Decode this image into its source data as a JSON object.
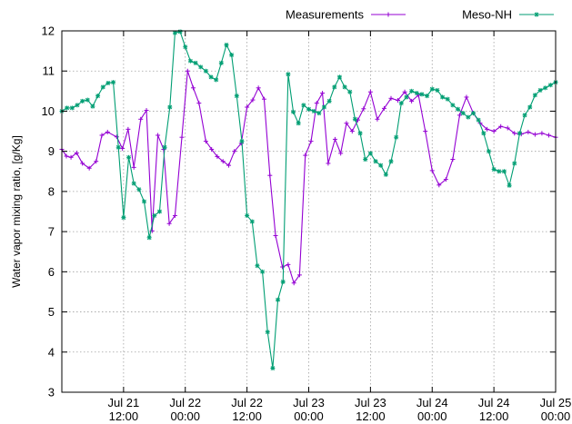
{
  "chart_data": {
    "type": "line",
    "ylabel": "Water vapor mixing ratio, [g/Kg]",
    "xlabel": "",
    "ylim": [
      3,
      12
    ],
    "yticks": [
      3,
      4,
      5,
      6,
      7,
      8,
      9,
      10,
      11,
      12
    ],
    "xlim": [
      "2007-07-21 00:00",
      "2007-07-25 00:00"
    ],
    "xticks": [
      {
        "x": "2007-07-21 12:00",
        "label": [
          "Jul 21",
          "12:00"
        ]
      },
      {
        "x": "2007-07-22 00:00",
        "label": [
          "Jul 22",
          "00:00"
        ]
      },
      {
        "x": "2007-07-22 12:00",
        "label": [
          "Jul 22",
          "12:00"
        ]
      },
      {
        "x": "2007-07-23 00:00",
        "label": [
          "Jul 23",
          "00:00"
        ]
      },
      {
        "x": "2007-07-23 12:00",
        "label": [
          "Jul 23",
          "12:00"
        ]
      },
      {
        "x": "2007-07-24 00:00",
        "label": [
          "Jul 24",
          "00:00"
        ]
      },
      {
        "x": "2007-07-24 12:00",
        "label": [
          "Jul 24",
          "12:00"
        ]
      },
      {
        "x": "2007-07-25 00:00",
        "label": [
          "Jul 25",
          "00:00"
        ]
      }
    ],
    "grid": true,
    "legend_position": "top-right",
    "series": [
      {
        "name": "Measurements",
        "color": "#9400d3",
        "marker": "plus",
        "x": [
          "2007-07-21 00:00",
          "2007-07-21 00:53",
          "2007-07-21 01:47",
          "2007-07-21 02:53",
          "2007-07-21 04:00",
          "2007-07-21 05:20",
          "2007-07-21 06:40",
          "2007-07-21 07:47",
          "2007-07-21 08:53",
          "2007-07-21 10:40",
          "2007-07-21 11:47",
          "2007-07-21 12:53",
          "2007-07-21 14:00",
          "2007-07-21 15:20",
          "2007-07-21 16:27",
          "2007-07-21 17:33",
          "2007-07-21 18:40",
          "2007-07-21 19:47",
          "2007-07-21 20:53",
          "2007-07-21 22:00",
          "2007-07-21 23:20",
          "2007-07-22 00:27",
          "2007-07-22 01:33",
          "2007-07-22 02:40",
          "2007-07-22 04:00",
          "2007-07-22 05:07",
          "2007-07-22 06:13",
          "2007-07-22 07:20",
          "2007-07-22 08:27",
          "2007-07-22 09:33",
          "2007-07-22 10:53",
          "2007-07-22 12:00",
          "2007-07-22 13:07",
          "2007-07-22 14:13",
          "2007-07-22 15:20",
          "2007-07-22 16:27",
          "2007-07-22 17:33",
          "2007-07-22 18:53",
          "2007-07-22 20:00",
          "2007-07-22 21:07",
          "2007-07-22 22:13",
          "2007-07-22 23:20",
          "2007-07-23 00:27",
          "2007-07-23 01:33",
          "2007-07-23 02:40",
          "2007-07-23 03:47",
          "2007-07-23 05:07",
          "2007-07-23 06:13",
          "2007-07-23 07:20",
          "2007-07-23 08:27",
          "2007-07-23 09:33",
          "2007-07-23 10:40",
          "2007-07-23 12:00",
          "2007-07-23 13:20",
          "2007-07-23 14:40",
          "2007-07-23 16:00",
          "2007-07-23 17:20",
          "2007-07-23 18:40",
          "2007-07-23 20:00",
          "2007-07-23 21:20",
          "2007-07-23 22:40",
          "2007-07-24 00:00",
          "2007-07-24 01:20",
          "2007-07-24 02:40",
          "2007-07-24 04:00",
          "2007-07-24 05:20",
          "2007-07-24 06:40",
          "2007-07-24 08:00",
          "2007-07-24 09:20",
          "2007-07-24 10:40",
          "2007-07-24 12:00",
          "2007-07-24 13:20",
          "2007-07-24 14:40",
          "2007-07-24 16:00",
          "2007-07-24 17:20",
          "2007-07-24 18:40",
          "2007-07-24 20:00",
          "2007-07-24 21:20",
          "2007-07-24 22:40",
          "2007-07-25 00:00"
        ],
        "values": [
          9.05,
          8.88,
          8.85,
          8.96,
          8.7,
          8.58,
          8.75,
          9.4,
          9.48,
          9.36,
          9.07,
          9.55,
          8.6,
          9.8,
          10.02,
          7.02,
          9.4,
          9.05,
          7.2,
          7.4,
          9.35,
          11.0,
          10.58,
          10.2,
          9.25,
          9.05,
          8.87,
          8.75,
          8.65,
          9.0,
          9.2,
          10.1,
          10.28,
          10.58,
          10.3,
          8.4,
          6.9,
          6.12,
          6.18,
          5.72,
          5.92,
          8.9,
          9.25,
          10.2,
          10.45,
          8.7,
          9.3,
          8.95,
          9.7,
          9.5,
          9.78,
          10.06,
          10.48,
          9.8,
          10.07,
          10.32,
          10.27,
          10.48,
          10.25,
          10.4,
          9.5,
          8.52,
          8.16,
          8.3,
          8.8,
          9.9,
          10.35,
          9.95,
          9.7,
          9.55,
          9.5,
          9.62,
          9.58,
          9.45,
          9.43,
          9.48,
          9.42,
          9.45,
          9.4,
          9.35
        ]
      },
      {
        "name": "Meso-NH",
        "color": "#009e73",
        "marker": "star",
        "x": [
          "2007-07-21 00:00",
          "2007-07-21 01:00",
          "2007-07-21 02:00",
          "2007-07-21 03:00",
          "2007-07-21 04:00",
          "2007-07-21 05:00",
          "2007-07-21 06:00",
          "2007-07-21 07:00",
          "2007-07-21 08:00",
          "2007-07-21 09:00",
          "2007-07-21 10:00",
          "2007-07-21 11:00",
          "2007-07-21 12:00",
          "2007-07-21 13:00",
          "2007-07-21 14:00",
          "2007-07-21 15:00",
          "2007-07-21 16:00",
          "2007-07-21 17:00",
          "2007-07-21 18:00",
          "2007-07-21 19:00",
          "2007-07-21 20:00",
          "2007-07-21 21:00",
          "2007-07-21 22:00",
          "2007-07-21 23:00",
          "2007-07-22 00:00",
          "2007-07-22 01:00",
          "2007-07-22 02:00",
          "2007-07-22 03:00",
          "2007-07-22 04:00",
          "2007-07-22 05:00",
          "2007-07-22 06:00",
          "2007-07-22 07:00",
          "2007-07-22 08:00",
          "2007-07-22 09:00",
          "2007-07-22 10:00",
          "2007-07-22 11:00",
          "2007-07-22 12:00",
          "2007-07-22 13:00",
          "2007-07-22 14:00",
          "2007-07-22 15:00",
          "2007-07-22 16:00",
          "2007-07-22 17:00",
          "2007-07-22 18:00",
          "2007-07-22 19:00",
          "2007-07-22 20:00",
          "2007-07-22 21:00",
          "2007-07-22 22:00",
          "2007-07-22 23:00",
          "2007-07-23 00:00",
          "2007-07-23 01:00",
          "2007-07-23 02:00",
          "2007-07-23 03:00",
          "2007-07-23 04:00",
          "2007-07-23 05:00",
          "2007-07-23 06:00",
          "2007-07-23 07:00",
          "2007-07-23 08:00",
          "2007-07-23 09:00",
          "2007-07-23 10:00",
          "2007-07-23 11:00",
          "2007-07-23 12:00",
          "2007-07-23 13:00",
          "2007-07-23 14:00",
          "2007-07-23 15:00",
          "2007-07-23 16:00",
          "2007-07-23 17:00",
          "2007-07-23 18:00",
          "2007-07-23 19:00",
          "2007-07-23 20:00",
          "2007-07-23 21:00",
          "2007-07-23 22:00",
          "2007-07-23 23:00",
          "2007-07-24 00:00",
          "2007-07-24 01:00",
          "2007-07-24 02:00",
          "2007-07-24 03:00",
          "2007-07-24 04:00",
          "2007-07-24 05:00",
          "2007-07-24 06:00",
          "2007-07-24 07:00",
          "2007-07-24 08:00",
          "2007-07-24 09:00",
          "2007-07-24 10:00",
          "2007-07-24 11:00",
          "2007-07-24 12:00",
          "2007-07-24 13:00",
          "2007-07-24 14:00",
          "2007-07-24 15:00",
          "2007-07-24 16:00",
          "2007-07-24 17:00",
          "2007-07-24 18:00",
          "2007-07-24 19:00",
          "2007-07-24 20:00",
          "2007-07-24 21:00",
          "2007-07-24 22:00",
          "2007-07-24 23:00",
          "2007-07-25 00:00"
        ],
        "values": [
          10.0,
          10.08,
          10.08,
          10.15,
          10.25,
          10.28,
          10.12,
          10.38,
          10.6,
          10.7,
          10.72,
          9.1,
          7.35,
          8.85,
          8.2,
          8.05,
          7.75,
          6.85,
          7.4,
          7.5,
          9.1,
          10.1,
          11.95,
          11.98,
          11.6,
          11.25,
          11.2,
          11.1,
          11.0,
          10.85,
          10.78,
          11.2,
          11.65,
          11.4,
          10.38,
          9.25,
          7.4,
          7.25,
          6.15,
          6.0,
          4.5,
          3.6,
          5.3,
          5.75,
          10.92,
          9.98,
          9.7,
          10.15,
          10.05,
          10.0,
          9.95,
          10.1,
          10.25,
          10.6,
          10.85,
          10.6,
          10.48,
          9.8,
          9.45,
          8.8,
          8.95,
          8.75,
          8.65,
          8.42,
          8.75,
          9.35,
          10.2,
          10.35,
          10.5,
          10.45,
          10.42,
          10.38,
          10.55,
          10.52,
          10.35,
          10.3,
          10.15,
          10.05,
          9.95,
          9.85,
          9.95,
          9.78,
          9.45,
          9.0,
          8.55,
          8.5,
          8.5,
          8.15,
          8.7,
          9.45,
          9.9,
          10.1,
          10.4,
          10.52,
          10.58,
          10.65,
          10.72
        ]
      }
    ]
  }
}
